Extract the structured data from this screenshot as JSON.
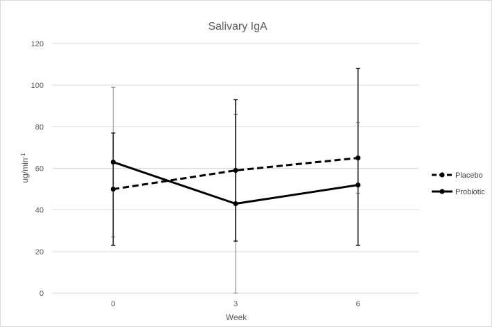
{
  "chart_data": {
    "type": "line",
    "title": "Salivary IgA",
    "xlabel": "Week",
    "ylabel_base": "ug/min",
    "ylabel_sup": "-1",
    "categories": [
      "0",
      "3",
      "6"
    ],
    "ylim": [
      0,
      120
    ],
    "yticks": [
      0,
      20,
      40,
      60,
      80,
      100,
      120
    ],
    "grid": true,
    "legend_position": "right",
    "series": [
      {
        "name": "Placebo",
        "values": [
          50,
          59,
          65
        ],
        "err_low": [
          27,
          0,
          48
        ],
        "err_high": [
          99,
          86,
          82
        ],
        "line_style": "dashed",
        "error_bar_style": "thin",
        "color": "#000000",
        "error_color": "#808080"
      },
      {
        "name": "Probiotic",
        "values": [
          63,
          43,
          52
        ],
        "err_low": [
          23,
          25,
          23
        ],
        "err_high": [
          77,
          93,
          108
        ],
        "line_style": "solid",
        "error_bar_style": "thick",
        "color": "#000000",
        "error_color": "#000000"
      }
    ]
  }
}
